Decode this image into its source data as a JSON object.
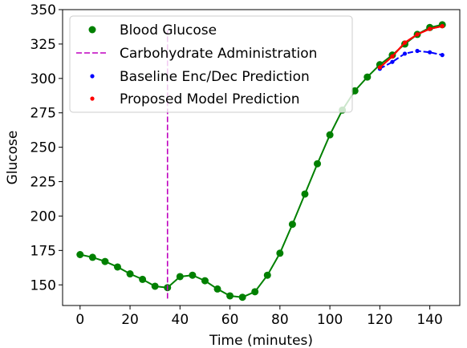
{
  "chart_data": {
    "type": "line",
    "title": "",
    "xlabel": "Time (minutes)",
    "ylabel": "Glucose",
    "xlim": [
      -7,
      152
    ],
    "ylim": [
      135,
      350
    ],
    "xticks": [
      0,
      20,
      40,
      60,
      80,
      100,
      120,
      140
    ],
    "yticks": [
      150,
      175,
      200,
      225,
      250,
      275,
      300,
      325,
      350
    ],
    "grid": false,
    "legend_position": "top-left",
    "series": [
      {
        "name": "Blood Glucose",
        "kind": "line-markers",
        "color": "#008000",
        "x": [
          0,
          5,
          10,
          15,
          20,
          25,
          30,
          35,
          40,
          45,
          50,
          55,
          60,
          65,
          70,
          75,
          80,
          85,
          90,
          95,
          100,
          105,
          110,
          115,
          120,
          125,
          130,
          135,
          140,
          145
        ],
        "y": [
          172,
          170,
          167,
          163,
          158,
          154,
          149,
          148,
          156,
          157,
          153,
          147,
          142,
          141,
          145,
          157,
          173,
          194,
          216,
          238,
          259,
          277,
          291,
          301,
          310,
          317,
          325,
          332,
          337,
          339
        ]
      },
      {
        "name": "Carbohydrate Administration",
        "kind": "vline",
        "color": "#bf00bf",
        "x": 35,
        "ylim": [
          140,
          335
        ]
      },
      {
        "name": "Baseline Enc/Dec Prediction",
        "kind": "dashed-dots",
        "color": "#0000ff",
        "x": [
          120,
          125,
          130,
          135,
          140,
          145
        ],
        "y": [
          307,
          312,
          318,
          320,
          319,
          317
        ]
      },
      {
        "name": "Proposed Model Prediction",
        "kind": "line-dots",
        "color": "#ff0000",
        "x": [
          120,
          125,
          130,
          135,
          140,
          145
        ],
        "y": [
          308,
          316,
          326,
          332,
          336,
          338
        ]
      }
    ]
  }
}
